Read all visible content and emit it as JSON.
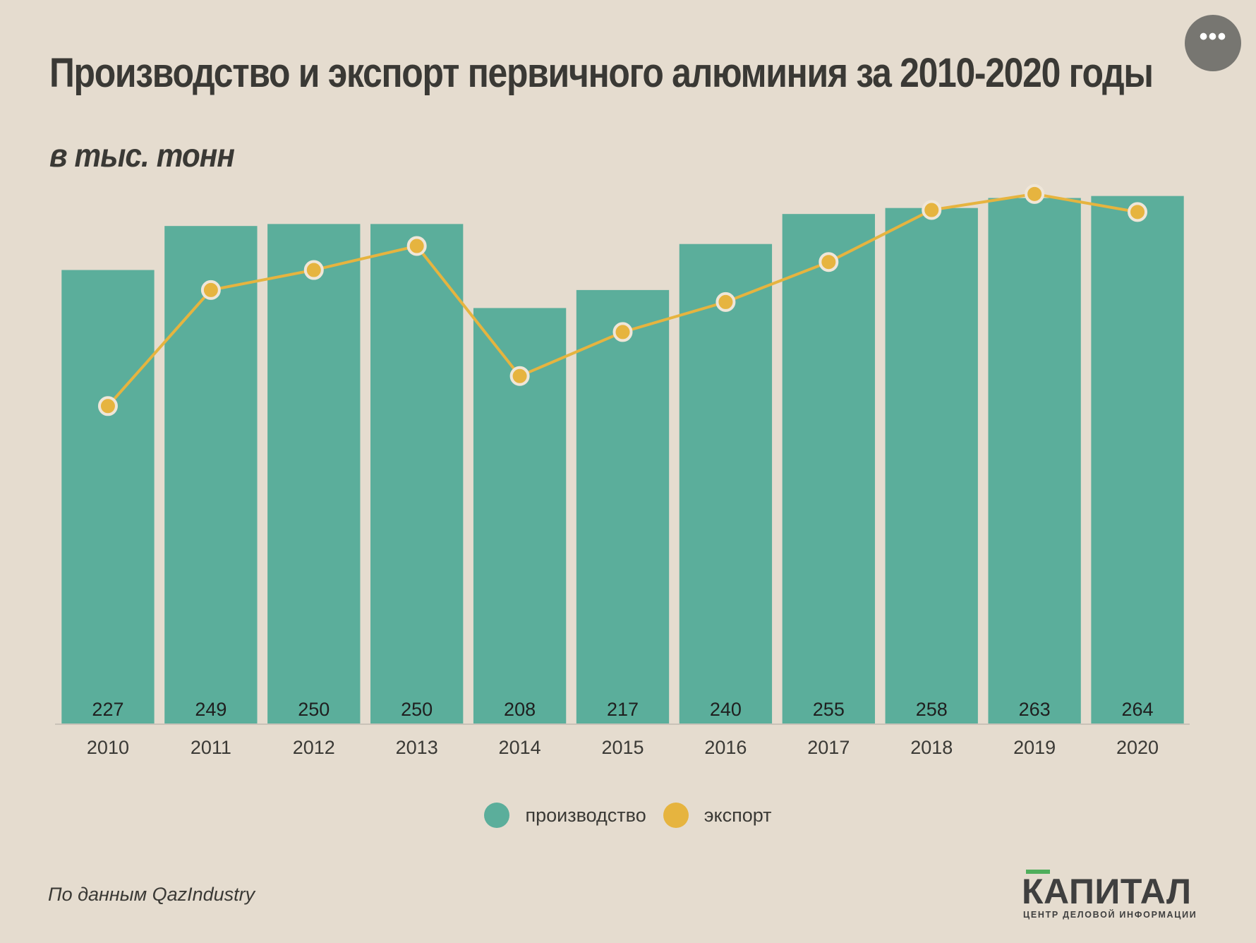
{
  "header": {
    "title": "Производство и экспорт первичного алюминия за 2010-2020 годы",
    "subtitle": "в тыс. тонн",
    "more_icon": "ellipsis-icon",
    "more_label": "•••"
  },
  "chart_data": {
    "type": "bar",
    "categories": [
      "2010",
      "2011",
      "2012",
      "2013",
      "2014",
      "2015",
      "2016",
      "2017",
      "2018",
      "2019",
      "2020"
    ],
    "series": [
      {
        "name": "производство",
        "type": "bar",
        "color": "#5bae9b",
        "values": [
          227,
          249,
          250,
          250,
          208,
          217,
          240,
          255,
          258,
          263,
          264
        ],
        "data_labels": [
          "227",
          "249",
          "250",
          "250",
          "208",
          "217",
          "240",
          "255",
          "258",
          "263",
          "264"
        ]
      },
      {
        "name": "экспорт",
        "type": "line",
        "color": "#e6b43f",
        "values": [
          159,
          217,
          227,
          239,
          174,
          196,
          211,
          231,
          257,
          265,
          256
        ]
      }
    ],
    "ylim": [
      0,
      266
    ],
    "grid": false,
    "legend": "bottom-center",
    "title": "Производство и экспорт первичного алюминия за 2010-2020 годы",
    "subtitle": "в тыс. тонн"
  },
  "footer": {
    "source": "По данным QazIndustry",
    "logo_name": "КАПИТАЛ",
    "logo_tagline": "ЦЕНТР ДЕЛОВОЙ ИНФОРМАЦИИ"
  }
}
